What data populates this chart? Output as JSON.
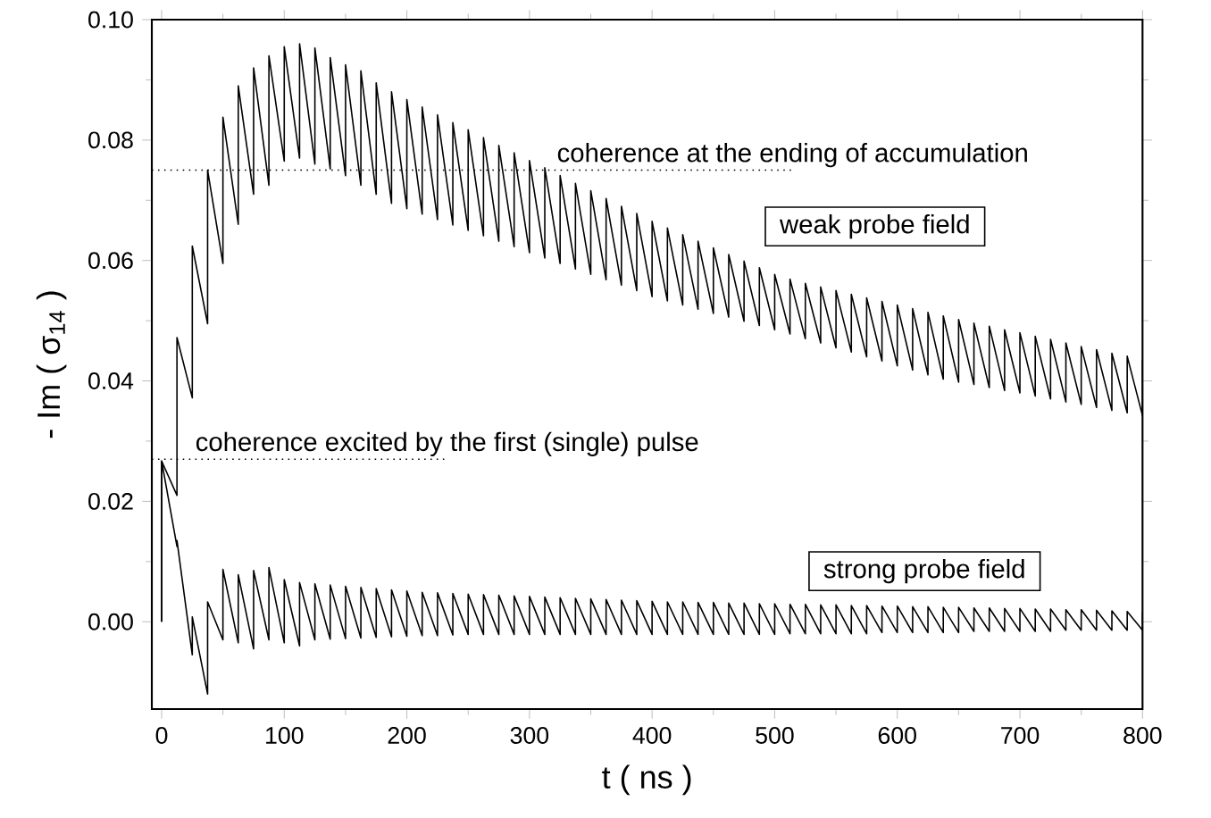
{
  "chart_data": {
    "type": "line",
    "xlabel": "t ( ns )",
    "ylabel": "- Im ( σ$_{14}$ )",
    "xlim": [
      -8,
      800
    ],
    "ylim": [
      -0.0145,
      0.1
    ],
    "xticks": [
      0,
      100,
      200,
      300,
      400,
      500,
      600,
      700,
      800
    ],
    "yticks": [
      {
        "value": 0,
        "label": "0.00"
      },
      {
        "value": 0.02,
        "label": "0.02"
      },
      {
        "value": 0.04,
        "label": "0.04"
      },
      {
        "value": 0.06,
        "label": "0.06"
      },
      {
        "value": 0.08,
        "label": "0.08"
      },
      {
        "value": 0.1,
        "label": "0.10"
      }
    ],
    "grid": false,
    "line_style": "solid",
    "x": [
      0,
      0,
      12.5,
      12.5,
      25,
      25,
      37.5,
      37.5,
      50,
      50,
      62.5,
      62.5,
      75,
      75,
      87.5,
      87.5,
      100,
      100,
      112.5,
      112.5,
      125,
      125,
      137.5,
      137.5,
      150,
      150,
      162.5,
      162.5,
      175,
      175,
      187.5,
      187.5,
      200,
      200,
      212.5,
      212.5,
      225,
      225,
      237.5,
      237.5,
      250,
      250,
      262.5,
      262.5,
      275,
      275,
      287.5,
      287.5,
      300,
      300,
      312.5,
      312.5,
      325,
      325,
      337.5,
      337.5,
      350,
      350,
      362.5,
      362.5,
      375,
      375,
      387.5,
      387.5,
      400,
      400,
      412.5,
      412.5,
      425,
      425,
      437.5,
      437.5,
      450,
      450,
      462.5,
      462.5,
      475,
      475,
      487.5,
      487.5,
      500,
      500,
      512.5,
      512.5,
      525,
      525,
      537.5,
      537.5,
      550,
      550,
      562.5,
      562.5,
      575,
      575,
      587.5,
      587.5,
      600,
      600,
      612.5,
      612.5,
      625,
      625,
      637.5,
      637.5,
      650,
      650,
      662.5,
      662.5,
      675,
      675,
      687.5,
      687.5,
      700,
      700,
      712.5,
      712.5,
      725,
      725,
      737.5,
      737.5,
      750,
      750,
      762.5,
      762.5,
      775,
      775,
      787.5,
      787.5,
      800,
      800
    ],
    "series": [
      {
        "name": "weak probe field",
        "color": "#000000",
        "values": [
          0,
          0.0267,
          0.021,
          0.0472,
          0.0372,
          0.0624,
          0.0495,
          0.075,
          0.0595,
          0.0838,
          0.066,
          0.089,
          0.071,
          0.092,
          0.0725,
          0.094,
          0.0765,
          0.0955,
          0.077,
          0.096,
          0.076,
          0.0953,
          0.0752,
          0.0937,
          0.0741,
          0.0925,
          0.0725,
          0.0915,
          0.071,
          0.0895,
          0.0695,
          0.088,
          0.0686,
          0.0867,
          0.0677,
          0.0855,
          0.0668,
          0.0842,
          0.0659,
          0.0829,
          0.065,
          0.0817,
          0.0641,
          0.0804,
          0.0632,
          0.0791,
          0.0623,
          0.0779,
          0.0613,
          0.0766,
          0.0604,
          0.0754,
          0.0595,
          0.0741,
          0.0586,
          0.0728,
          0.0577,
          0.0716,
          0.0568,
          0.0703,
          0.0559,
          0.069,
          0.055,
          0.0678,
          0.054,
          0.0665,
          0.0533,
          0.0654,
          0.0526,
          0.0643,
          0.0519,
          0.0632,
          0.0512,
          0.0621,
          0.0506,
          0.061,
          0.0499,
          0.0599,
          0.0492,
          0.0588,
          0.0485,
          0.0577,
          0.0478,
          0.0569,
          0.047,
          0.0562,
          0.0463,
          0.0556,
          0.0455,
          0.055,
          0.0448,
          0.0544,
          0.044,
          0.0538,
          0.0433,
          0.0532,
          0.0425,
          0.0526,
          0.0418,
          0.052,
          0.041,
          0.0514,
          0.0403,
          0.0508,
          0.0398,
          0.0502,
          0.0394,
          0.0496,
          0.0389,
          0.0491,
          0.0384,
          0.0485,
          0.038,
          0.048,
          0.0375,
          0.0474,
          0.037,
          0.0469,
          0.0365,
          0.0463,
          0.0361,
          0.0457,
          0.0356,
          0.0452,
          0.0351,
          0.0446,
          0.0347,
          0.0441,
          0.0342,
          0.0435
        ]
      },
      {
        "name": "strong probe field",
        "color": "#000000",
        "values": [
          0,
          0.0267,
          0.0125,
          0.0135,
          -0.0055,
          0.0008,
          -0.012,
          0.0033,
          -0.003,
          0.0087,
          -0.0035,
          0.0078,
          -0.0045,
          0.0085,
          -0.003,
          0.009,
          -0.0035,
          0.007,
          -0.004,
          0.0065,
          -0.003,
          0.0063,
          -0.0029,
          0.0061,
          -0.0028,
          0.0059,
          -0.0027,
          0.0057,
          -0.0026,
          0.0055,
          -0.0025,
          0.0053,
          -0.0024,
          0.0051,
          -0.0023,
          0.0049,
          -0.0023,
          0.0048,
          -0.0022,
          0.0047,
          -0.0021,
          0.0046,
          -0.0021,
          0.0045,
          -0.0021,
          0.0044,
          -0.0021,
          0.0043,
          -0.0021,
          0.0042,
          -0.0021,
          0.0041,
          -0.0021,
          0.004,
          -0.0021,
          0.0039,
          -0.0021,
          0.0038,
          -0.0021,
          0.0037,
          -0.0021,
          0.0036,
          -0.0021,
          0.0035,
          -0.0021,
          0.0034,
          -0.0021,
          0.0033,
          -0.0021,
          0.0033,
          -0.0021,
          0.0032,
          -0.0021,
          0.0032,
          -0.0021,
          0.0031,
          -0.0021,
          0.0031,
          -0.0021,
          0.003,
          -0.0021,
          0.003,
          -0.002,
          0.0029,
          -0.002,
          0.0029,
          -0.002,
          0.0028,
          -0.002,
          0.0028,
          -0.002,
          0.0027,
          -0.002,
          0.0027,
          -0.0018,
          0.0026,
          -0.0018,
          0.0026,
          -0.0018,
          0.0025,
          -0.0018,
          0.0025,
          -0.0018,
          0.0024,
          -0.0018,
          0.0024,
          -0.0016,
          0.0023,
          -0.0016,
          0.0023,
          -0.0016,
          0.0022,
          -0.0016,
          0.0022,
          -0.0016,
          0.0021,
          -0.0016,
          0.0021,
          -0.0014,
          0.002,
          -0.0014,
          0.002,
          -0.0014,
          0.0019,
          -0.0014,
          0.0018,
          -0.0014,
          0.0017,
          -0.0014,
          0.0016
        ]
      }
    ],
    "ref_lines": [
      {
        "axis": "y",
        "value": 0.075,
        "label": "coherence at the ending of accumulation",
        "line_style": "dotted"
      },
      {
        "axis": "y",
        "value": 0.027,
        "label": "coherence excited by the first (single) pulse",
        "line_style": "dotted"
      }
    ]
  }
}
